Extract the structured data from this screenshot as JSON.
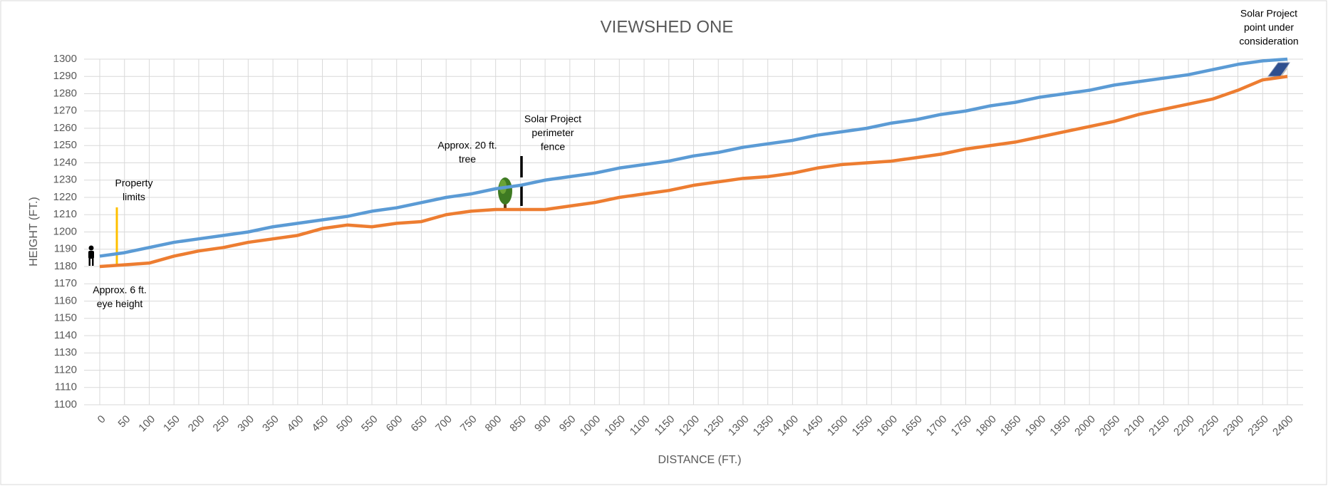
{
  "chart_data": {
    "type": "line",
    "title": "VIEWSHED ONE",
    "x_label": "DISTANCE (FT.)",
    "y_label": "HEIGHT (FT.)",
    "categories": [
      "0",
      "50",
      "100",
      "150",
      "200",
      "250",
      "300",
      "350",
      "400",
      "450",
      "500",
      "550",
      "600",
      "650",
      "700",
      "750",
      "800",
      "850",
      "900",
      "950",
      "1000",
      "1050",
      "1100",
      "1150",
      "1200",
      "1250",
      "1300",
      "1350",
      "1400",
      "1450",
      "1500",
      "1550",
      "1600",
      "1650",
      "1700",
      "1750",
      "1800",
      "1850",
      "1900",
      "1950",
      "2000",
      "2050",
      "2100",
      "2150",
      "2200",
      "2250",
      "2300",
      "2350",
      "2400"
    ],
    "series": [
      {
        "color": "#5b9bd5",
        "values": [
          1186,
          1188,
          1191,
          1194,
          1196,
          1198,
          1200,
          1203,
          1205,
          1207,
          1209,
          1212,
          1214,
          1217,
          1220,
          1222,
          1225,
          1227,
          1230,
          1232,
          1234,
          1237,
          1239,
          1241,
          1244,
          1246,
          1249,
          1251,
          1253,
          1256,
          1258,
          1260,
          1263,
          1265,
          1268,
          1270,
          1273,
          1275,
          1278,
          1280,
          1282,
          1285,
          1287,
          1289,
          1291,
          1294,
          1297,
          1299,
          1300
        ]
      },
      {
        "color": "#ed7d31",
        "values": [
          1180,
          1181,
          1182,
          1186,
          1189,
          1191,
          1194,
          1196,
          1198,
          1202,
          1204,
          1203,
          1205,
          1206,
          1210,
          1212,
          1213,
          1213,
          1213,
          1215,
          1217,
          1220,
          1222,
          1224,
          1227,
          1229,
          1231,
          1232,
          1234,
          1237,
          1239,
          1240,
          1241,
          1243,
          1245,
          1248,
          1250,
          1252,
          1255,
          1258,
          1261,
          1264,
          1268,
          1271,
          1274,
          1277,
          1282,
          1288,
          1290
        ]
      }
    ],
    "ylim": [
      1100,
      1300
    ],
    "yticks": [
      1100,
      1110,
      1120,
      1130,
      1140,
      1150,
      1160,
      1170,
      1180,
      1190,
      1200,
      1210,
      1220,
      1230,
      1240,
      1250,
      1260,
      1270,
      1280,
      1290,
      1300
    ],
    "grid": true,
    "annotations": [
      {
        "lines": [
          "Property",
          "limits"
        ]
      },
      {
        "lines": [
          "Approx. 6 ft.",
          "eye height"
        ]
      },
      {
        "lines": [
          "Approx. 20 ft.",
          "tree"
        ]
      },
      {
        "lines": [
          "Solar Project",
          "perimeter",
          "fence"
        ]
      },
      {
        "lines": [
          "Solar Project",
          "point under",
          "consideration"
        ]
      }
    ]
  }
}
